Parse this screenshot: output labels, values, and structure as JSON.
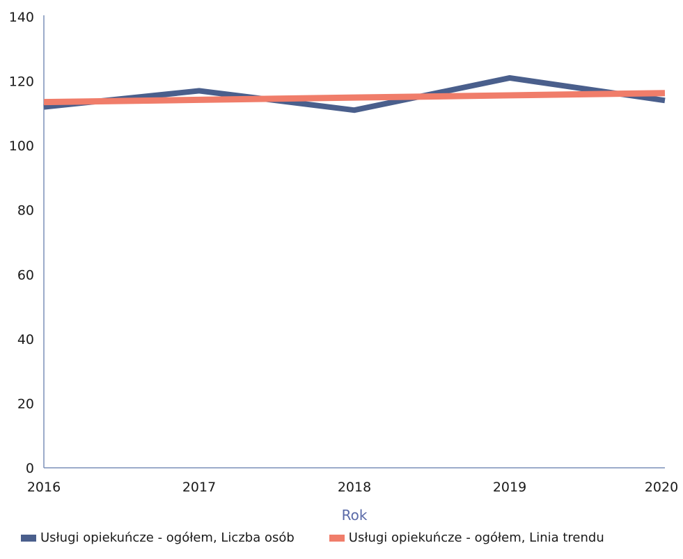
{
  "chart_data": {
    "type": "line",
    "title": "",
    "xlabel": "Rok",
    "ylabel": "",
    "categories": [
      "2016",
      "2017",
      "2018",
      "2019",
      "2020"
    ],
    "ylim": [
      0,
      140
    ],
    "yticks": [
      "0",
      "20",
      "40",
      "60",
      "80",
      "100",
      "120",
      "140"
    ],
    "grid": false,
    "legend_position": "bottom",
    "series": [
      {
        "name": "Usługi opiekuńcze - ogółem, Liczba osób",
        "values": [
          112,
          117,
          111,
          121,
          114
        ],
        "color": "#4a5f8c"
      },
      {
        "name": "Usługi opiekuńcze - ogółem, Linia trendu",
        "values": [
          113.5,
          114.2,
          114.9,
          115.6,
          116.3
        ],
        "color": "#f07d6a"
      }
    ]
  }
}
